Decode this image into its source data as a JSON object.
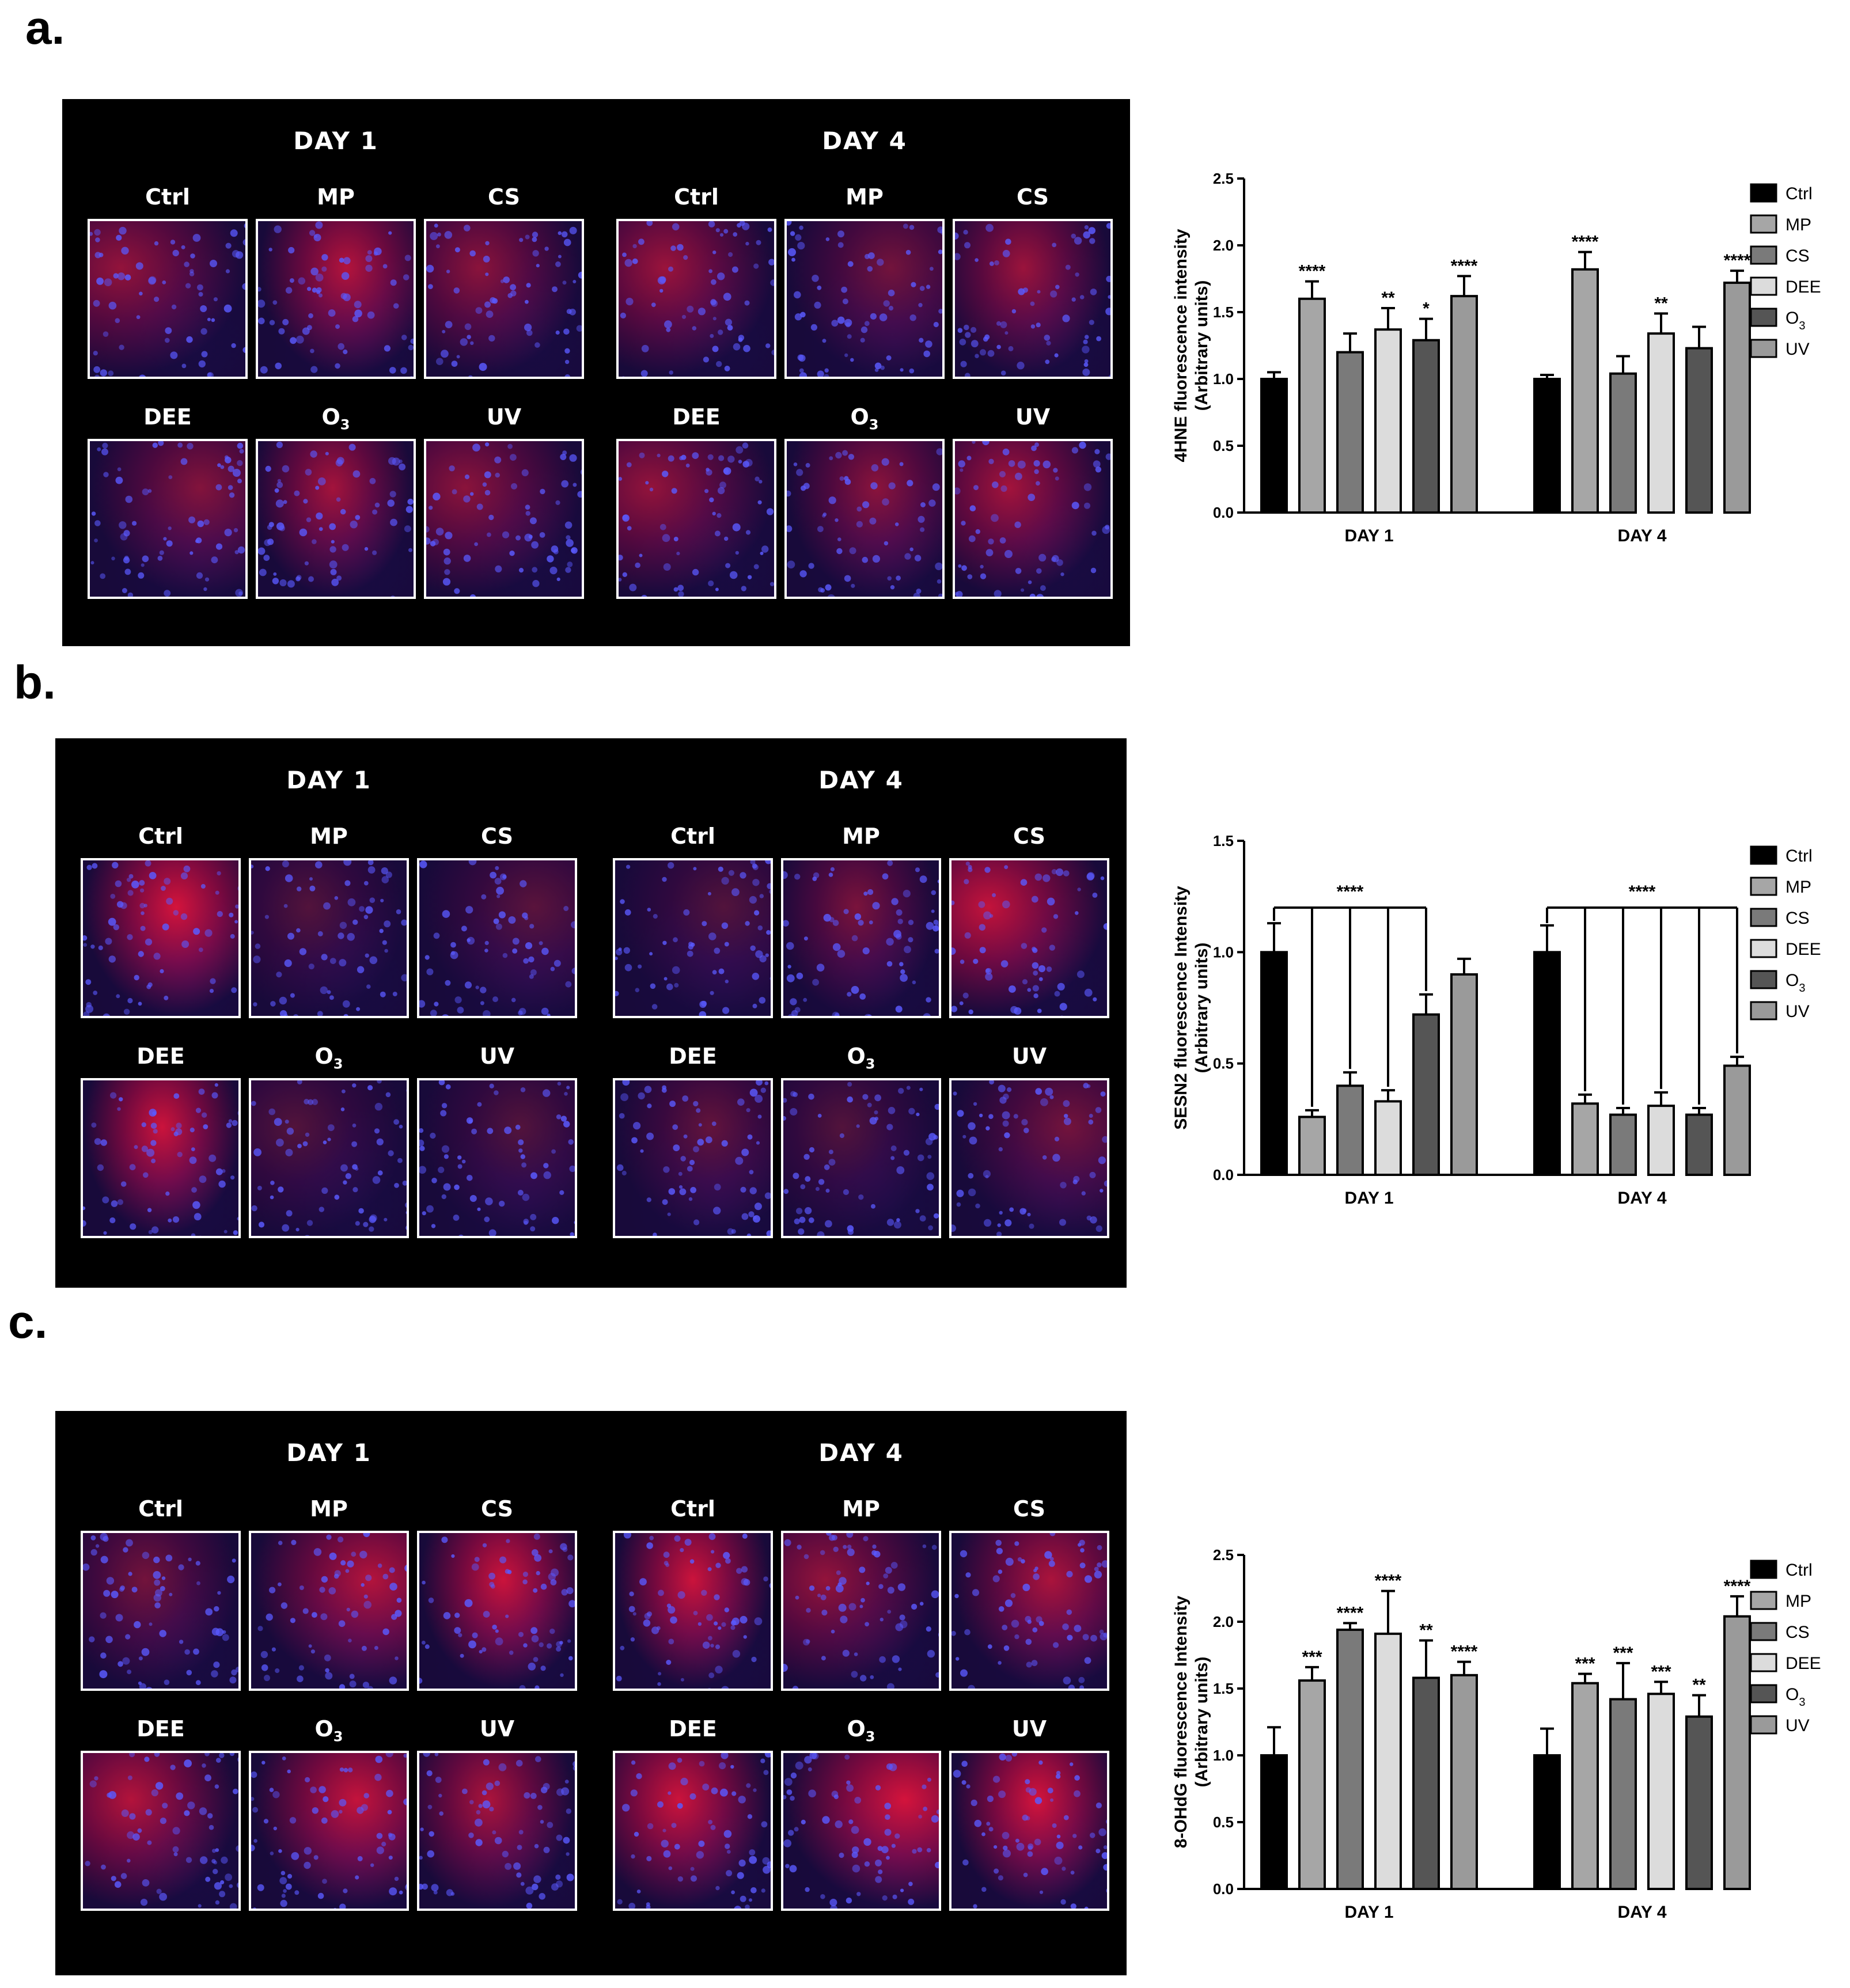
{
  "panels": [
    {
      "label": "a.",
      "micrograph": {
        "day_titles": [
          "DAY 1",
          "DAY 4"
        ],
        "rows": [
          [
            {
              "label": "Ctrl",
              "ox": "",
              "sub": ""
            },
            {
              "label": "MP",
              "ox": "",
              "sub": ""
            },
            {
              "label": "CS",
              "ox": "",
              "sub": ""
            }
          ],
          [
            {
              "label": "DEE",
              "ox": "",
              "sub": ""
            },
            {
              "label": "O",
              "ox": "3",
              "sub": "3"
            },
            {
              "label": "UV",
              "ox": "",
              "sub": ""
            }
          ]
        ],
        "intensity": [
          [
            0.55,
            0.75,
            0.5,
            0.45,
            0.65,
            0.5
          ],
          [
            0.6,
            0.35,
            0.6,
            0.55,
            0.5,
            0.65
          ]
        ]
      }
    },
    {
      "label": "b.",
      "micrograph": {
        "day_titles": [
          "DAY 1",
          "DAY 4"
        ],
        "rows": [
          [
            {
              "label": "Ctrl",
              "sub": ""
            },
            {
              "label": "MP",
              "sub": ""
            },
            {
              "label": "CS",
              "sub": ""
            }
          ],
          [
            {
              "label": "DEE",
              "sub": ""
            },
            {
              "label": "O",
              "sub": "3"
            },
            {
              "label": "UV",
              "sub": ""
            }
          ]
        ],
        "intensity": [
          [
            0.95,
            0.15,
            0.2,
            0.9,
            0.15,
            0.15
          ],
          [
            0.15,
            0.4,
            0.85,
            0.25,
            0.15,
            0.35
          ]
        ]
      }
    },
    {
      "label": "c.",
      "micrograph": {
        "day_titles": [
          "DAY 1",
          "DAY 4"
        ],
        "rows": [
          [
            {
              "label": "Ctrl",
              "sub": ""
            },
            {
              "label": "MP",
              "sub": ""
            },
            {
              "label": "CS",
              "sub": ""
            }
          ],
          [
            {
              "label": "DEE",
              "sub": ""
            },
            {
              "label": "O",
              "sub": "3"
            },
            {
              "label": "UV",
              "sub": ""
            }
          ]
        ],
        "intensity": [
          [
            0.35,
            0.75,
            0.9,
            0.75,
            0.85,
            0.7
          ],
          [
            0.9,
            0.55,
            0.7,
            0.9,
            0.95,
            0.95
          ]
        ]
      }
    }
  ],
  "legend_names": [
    "Ctrl",
    "MP",
    "CS",
    "DEE",
    "O",
    "UV"
  ],
  "legend_subs": [
    "",
    "",
    "",
    "",
    "3",
    ""
  ],
  "colors": [
    "#000000",
    "#a6a6a6",
    "#7a7a7a",
    "#dcdcdc",
    "#555555",
    "#9a9a9a"
  ],
  "chart_data": [
    {
      "type": "bar",
      "ylabel": "4HNE fluorescence intensity",
      "ylabel2": "(Arbitrary units)",
      "categories": [
        "DAY 1",
        "DAY 4"
      ],
      "ylim": [
        0,
        2.5
      ],
      "yticks": [
        "0.0",
        "0.5",
        "1.0",
        "1.5",
        "2.0",
        "2.5"
      ],
      "series": [
        {
          "name": "Ctrl",
          "values": [
            1.0,
            1.0
          ],
          "errors": [
            0.05,
            0.03
          ],
          "sig": [
            "",
            ""
          ]
        },
        {
          "name": "MP",
          "values": [
            1.6,
            1.82
          ],
          "errors": [
            0.13,
            0.13
          ],
          "sig": [
            "****",
            "****"
          ]
        },
        {
          "name": "CS",
          "values": [
            1.2,
            1.04
          ],
          "errors": [
            0.14,
            0.13
          ],
          "sig": [
            "",
            ""
          ]
        },
        {
          "name": "DEE",
          "values": [
            1.37,
            1.34
          ],
          "errors": [
            0.16,
            0.15
          ],
          "sig": [
            "**",
            "**"
          ]
        },
        {
          "name": "O3",
          "values": [
            1.29,
            1.23
          ],
          "errors": [
            0.16,
            0.16
          ],
          "sig": [
            "*",
            ""
          ]
        },
        {
          "name": "UV",
          "values": [
            1.62,
            1.72
          ],
          "errors": [
            0.15,
            0.09
          ],
          "sig": [
            "****",
            "****"
          ]
        }
      ]
    },
    {
      "type": "bar",
      "ylabel": "SESN2 fluorescence Intensity",
      "ylabel2": "(Arbitrary units)",
      "categories": [
        "DAY 1",
        "DAY 4"
      ],
      "ylim": [
        0,
        1.5
      ],
      "yticks": [
        "0.0",
        "0.5",
        "1.0",
        "1.5"
      ],
      "bracket_label": [
        "****",
        "****"
      ],
      "series": [
        {
          "name": "Ctrl",
          "values": [
            1.0,
            1.0
          ],
          "errors": [
            0.13,
            0.12
          ],
          "sig": [
            "",
            ""
          ]
        },
        {
          "name": "MP",
          "values": [
            0.26,
            0.32
          ],
          "errors": [
            0.03,
            0.04
          ],
          "sig": [
            "",
            ""
          ]
        },
        {
          "name": "CS",
          "values": [
            0.4,
            0.27
          ],
          "errors": [
            0.06,
            0.03
          ],
          "sig": [
            "",
            ""
          ]
        },
        {
          "name": "DEE",
          "values": [
            0.33,
            0.31
          ],
          "errors": [
            0.05,
            0.06
          ],
          "sig": [
            "",
            ""
          ]
        },
        {
          "name": "O3",
          "values": [
            0.72,
            0.27
          ],
          "errors": [
            0.09,
            0.03
          ],
          "sig": [
            "",
            ""
          ]
        },
        {
          "name": "UV",
          "values": [
            0.9,
            0.49
          ],
          "errors": [
            0.07,
            0.04
          ],
          "sig": [
            "",
            ""
          ]
        }
      ]
    },
    {
      "type": "bar",
      "ylabel": "8-OHdG fluorescence Intensity",
      "ylabel2": "(Arbitrary units)",
      "categories": [
        "DAY 1",
        "DAY 4"
      ],
      "ylim": [
        0,
        2.5
      ],
      "yticks": [
        "0.0",
        "0.5",
        "1.0",
        "1.5",
        "2.0",
        "2.5"
      ],
      "series": [
        {
          "name": "Ctrl",
          "values": [
            1.0,
            1.0
          ],
          "errors": [
            0.21,
            0.2
          ],
          "sig": [
            "",
            ""
          ]
        },
        {
          "name": "MP",
          "values": [
            1.56,
            1.54
          ],
          "errors": [
            0.1,
            0.07
          ],
          "sig": [
            "***",
            "***"
          ]
        },
        {
          "name": "CS",
          "values": [
            1.94,
            1.42
          ],
          "errors": [
            0.05,
            0.27
          ],
          "sig": [
            "****",
            "***"
          ]
        },
        {
          "name": "DEE",
          "values": [
            1.91,
            1.46
          ],
          "errors": [
            0.32,
            0.09
          ],
          "sig": [
            "****",
            "***"
          ]
        },
        {
          "name": "O3",
          "values": [
            1.58,
            1.29
          ],
          "errors": [
            0.28,
            0.16
          ],
          "sig": [
            "**",
            "**"
          ]
        },
        {
          "name": "UV",
          "values": [
            1.6,
            2.04
          ],
          "errors": [
            0.1,
            0.15
          ],
          "sig": [
            "****",
            "****"
          ]
        }
      ]
    }
  ]
}
